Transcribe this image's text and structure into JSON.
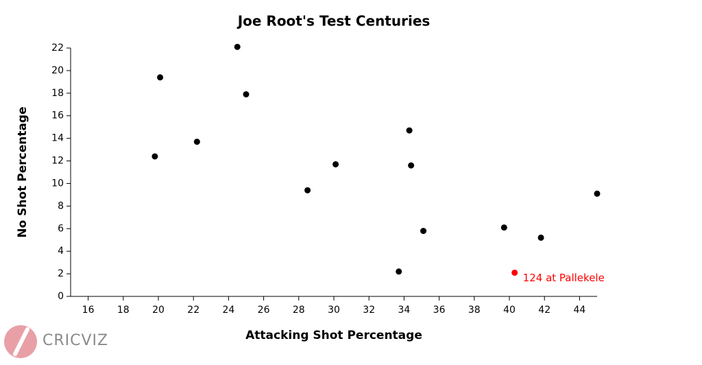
{
  "chart_data": {
    "type": "scatter",
    "title": "Joe Root's Test Centuries",
    "x_label": "Attacking Shot Percentage",
    "y_label": "No Shot Percentage",
    "xlim": [
      15,
      45
    ],
    "xticks": [
      16,
      18,
      20,
      22,
      24,
      26,
      28,
      30,
      32,
      34,
      36,
      38,
      40,
      42,
      44
    ],
    "ylim": [
      0,
      22
    ],
    "yticks": [
      0,
      2,
      4,
      6,
      8,
      10,
      12,
      14,
      16,
      18,
      20,
      22
    ],
    "series": [
      {
        "color": "#000000",
        "x": [
          19.8,
          20.1,
          22.2,
          24.5,
          25.0,
          28.5,
          30.1,
          33.7,
          34.3,
          34.4,
          35.1,
          39.7,
          41.8,
          45.0
        ],
        "values": [
          12.4,
          19.4,
          13.7,
          22.1,
          17.9,
          9.4,
          11.7,
          2.2,
          14.7,
          11.6,
          5.8,
          6.1,
          5.2,
          9.1
        ]
      }
    ],
    "annotations": [
      {
        "text": "124 at Pallekele",
        "x": 40.3,
        "y": 2.1,
        "color": "#ff0000"
      }
    ],
    "branding": "CRICVIZ"
  }
}
